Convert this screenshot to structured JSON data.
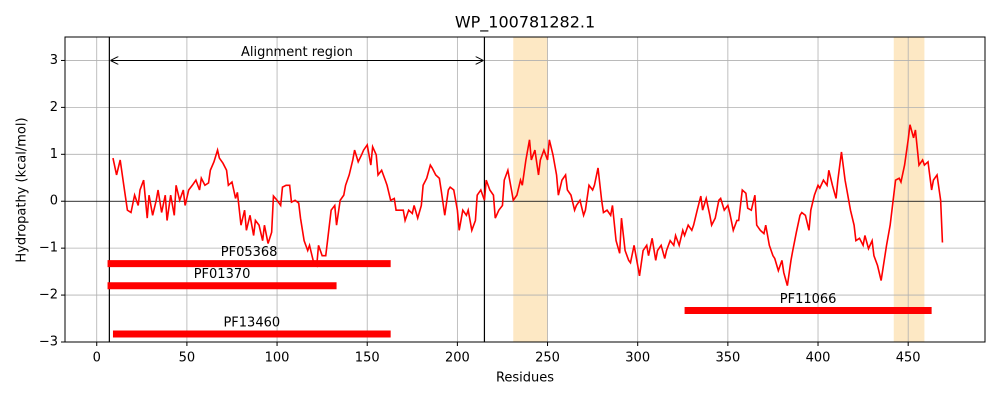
{
  "chart_data": {
    "type": "line",
    "title": "WP_100781282.1",
    "xlabel": "Residues",
    "ylabel": "Hydropathy (kcal/mol)",
    "color": "#ff0000",
    "x": [
      9,
      11,
      13,
      15,
      17,
      19,
      21,
      23,
      24,
      26,
      28,
      29,
      31,
      33,
      34,
      36,
      38,
      39,
      41,
      43,
      44,
      46,
      48,
      49,
      51,
      53,
      55,
      57,
      58,
      60,
      62,
      63,
      65,
      67,
      68,
      70,
      72,
      73,
      75,
      77,
      78,
      80,
      82,
      83,
      85,
      87,
      88,
      90,
      92,
      93,
      95,
      97,
      98,
      100,
      102,
      103,
      105,
      107,
      108,
      110,
      112,
      113,
      115,
      117,
      118,
      120,
      122,
      123,
      125,
      127,
      128,
      130,
      132,
      133,
      135,
      137,
      138,
      140,
      142,
      143,
      145,
      147,
      148,
      150,
      152,
      153,
      155,
      156,
      158,
      160,
      161,
      163,
      165,
      166,
      168,
      170,
      171,
      173,
      175,
      176,
      178,
      180,
      181,
      183,
      185,
      186,
      188,
      190,
      191,
      193,
      195,
      196,
      198,
      200,
      201,
      203,
      205,
      206,
      208,
      210,
      211,
      213,
      215,
      216,
      218,
      220,
      221,
      223,
      225,
      226,
      228,
      230,
      231,
      233,
      235,
      236,
      238,
      240,
      241,
      243,
      245,
      246,
      248,
      250,
      251,
      253,
      255,
      256,
      258,
      260,
      261,
      263,
      265,
      266,
      268,
      270,
      271,
      273,
      275,
      276,
      278,
      280,
      281,
      283,
      285,
      286,
      288,
      290,
      291,
      293,
      295,
      296,
      298,
      300,
      301,
      303,
      305,
      306,
      308,
      310,
      311,
      313,
      315,
      316,
      318,
      320,
      321,
      323,
      325,
      326,
      328,
      330,
      331,
      333,
      335,
      336,
      338,
      340,
      341,
      343,
      345,
      346,
      348,
      350,
      351,
      353,
      355,
      356,
      358,
      360,
      361,
      363,
      365,
      366,
      368,
      370,
      371,
      373,
      375,
      376,
      378,
      380,
      381,
      383,
      385,
      386,
      388,
      390,
      391,
      393,
      395,
      396,
      398,
      400,
      401,
      403,
      405,
      406,
      408,
      410,
      411,
      413,
      415,
      416,
      418,
      420,
      421,
      423,
      425,
      426,
      428,
      430,
      431,
      433,
      435,
      436,
      438,
      440,
      441,
      443,
      445,
      446,
      448,
      450,
      451,
      453,
      454,
      456,
      458,
      459,
      461,
      463,
      464,
      466,
      468,
      469
    ],
    "values": [
      0.92,
      0.56,
      0.88,
      0.34,
      -0.19,
      -0.24,
      0.13,
      -0.09,
      0.24,
      0.45,
      -0.36,
      0.13,
      -0.3,
      0.02,
      0.24,
      -0.24,
      0.13,
      -0.41,
      0.13,
      -0.3,
      0.34,
      0.02,
      0.24,
      -0.09,
      0.24,
      0.34,
      0.45,
      0.24,
      0.49,
      0.34,
      0.39,
      0.66,
      0.84,
      1.09,
      0.92,
      0.81,
      0.66,
      0.34,
      0.41,
      0.06,
      0.19,
      -0.51,
      -0.19,
      -0.62,
      -0.3,
      -0.73,
      -0.41,
      -0.51,
      -0.84,
      -0.51,
      -0.9,
      -0.66,
      0.11,
      0.02,
      -0.09,
      0.3,
      0.34,
      0.34,
      -0.02,
      0.02,
      -0.04,
      -0.36,
      -0.84,
      -1.05,
      -0.94,
      -1.26,
      -1.37,
      -0.94,
      -1.16,
      -1.16,
      -0.84,
      -0.19,
      -0.09,
      -0.51,
      0.02,
      0.13,
      0.34,
      0.56,
      0.88,
      1.09,
      0.84,
      1.0,
      1.09,
      1.2,
      0.77,
      1.16,
      0.99,
      0.56,
      0.66,
      0.45,
      0.34,
      0.02,
      0.06,
      -0.19,
      -0.19,
      -0.19,
      -0.41,
      -0.19,
      -0.26,
      -0.09,
      -0.36,
      -0.09,
      0.34,
      0.49,
      0.77,
      0.71,
      0.56,
      0.49,
      0.24,
      -0.3,
      0.24,
      0.3,
      0.24,
      -0.19,
      -0.62,
      -0.19,
      -0.3,
      -0.19,
      -0.62,
      -0.41,
      0.13,
      0.24,
      0.02,
      0.45,
      0.24,
      0.13,
      -0.36,
      -0.19,
      -0.09,
      0.45,
      0.66,
      0.24,
      0.02,
      0.13,
      0.45,
      0.34,
      0.88,
      1.31,
      0.88,
      1.09,
      0.56,
      0.88,
      1.09,
      0.88,
      1.31,
      0.99,
      0.56,
      0.13,
      0.45,
      0.56,
      0.24,
      0.13,
      -0.19,
      -0.09,
      0.02,
      -0.3,
      -0.19,
      0.34,
      0.24,
      0.34,
      0.71,
      0.02,
      -0.24,
      -0.19,
      -0.3,
      -0.09,
      -0.84,
      -1.11,
      -0.36,
      -1.05,
      -1.26,
      -1.31,
      -0.94,
      -1.37,
      -1.59,
      -1.05,
      -0.94,
      -1.16,
      -0.79,
      -1.26,
      -1.05,
      -0.94,
      -1.22,
      -1.05,
      -0.84,
      -0.94,
      -0.73,
      -0.94,
      -0.62,
      -0.73,
      -0.51,
      -0.62,
      -0.51,
      -0.19,
      0.11,
      -0.19,
      0.06,
      -0.3,
      -0.51,
      -0.36,
      0.02,
      0.06,
      -0.19,
      -0.09,
      -0.24,
      -0.62,
      -0.41,
      -0.41,
      0.24,
      0.17,
      -0.15,
      -0.19,
      0.13,
      -0.51,
      -0.62,
      -0.69,
      -0.51,
      -0.94,
      -1.16,
      -1.22,
      -1.48,
      -1.26,
      -1.52,
      -1.8,
      -1.26,
      -1.05,
      -0.66,
      -0.3,
      -0.24,
      -0.3,
      -0.62,
      -0.19,
      0.13,
      0.34,
      0.28,
      0.45,
      0.34,
      0.66,
      0.34,
      0.06,
      0.45,
      1.05,
      0.45,
      0.24,
      -0.19,
      -0.51,
      -0.84,
      -0.79,
      -0.94,
      -0.73,
      -1.01,
      -0.84,
      -1.16,
      -1.37,
      -1.69,
      -1.44,
      -0.94,
      -0.51,
      -0.19,
      0.45,
      0.49,
      0.41,
      0.77,
      1.31,
      1.63,
      1.35,
      1.52,
      0.77,
      0.88,
      0.77,
      0.84,
      0.24,
      0.45,
      0.56,
      0.02,
      -0.88
    ],
    "xlim": [
      -17.6,
      492.6
    ],
    "ylim": [
      -3,
      3.5
    ],
    "xticks": [
      0,
      50,
      100,
      150,
      200,
      250,
      300,
      350,
      400,
      450
    ],
    "yticks": [
      {
        "value": -3,
        "label": "−3"
      },
      {
        "value": -2,
        "label": "−2"
      },
      {
        "value": -1,
        "label": "−1"
      },
      0,
      1,
      2,
      3
    ],
    "grid": true,
    "hline": 0,
    "spans": [
      {
        "start": 231,
        "end": 250
      },
      {
        "start": 442,
        "end": 459
      }
    ],
    "span_color": "#fde8c4",
    "vlines": [
      7,
      215
    ],
    "annotation": {
      "text": "Alignment region",
      "start": 7,
      "end": 215,
      "y": 3
    },
    "domains": [
      {
        "name": "PF05368",
        "start": 6,
        "end": 163,
        "y": -1.33
      },
      {
        "name": "PF01370",
        "start": 6,
        "end": 133,
        "y": -1.8
      },
      {
        "name": "PF13460",
        "start": 9,
        "end": 163,
        "y": -2.83
      },
      {
        "name": "PF11066",
        "start": 326,
        "end": 463,
        "y": -2.33
      }
    ],
    "domain_color": "#ff0000"
  }
}
